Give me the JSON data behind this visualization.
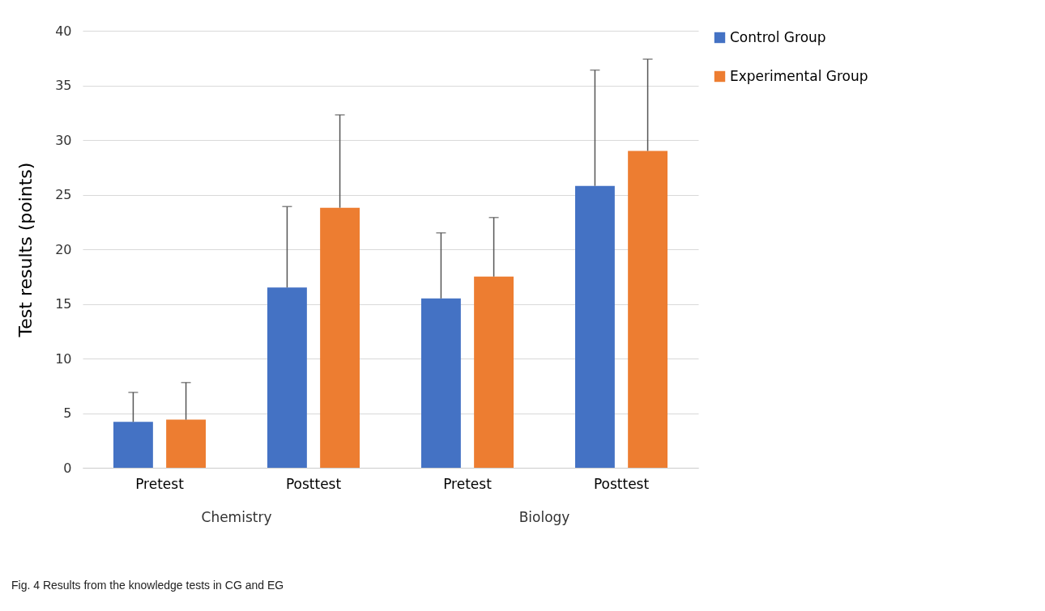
{
  "chart_data": {
    "type": "bar",
    "ylabel": "Test results (points)",
    "categories": [
      "Pretest",
      "Posttest",
      "Pretest",
      "Posttest"
    ],
    "series": [
      {
        "name": "Control Group",
        "color": "#4472c4",
        "values": [
          4.2,
          16.5,
          15.5,
          25.8
        ],
        "errors": [
          [
            4.2,
            6.9
          ],
          [
            16.5,
            23.9
          ],
          [
            15.5,
            21.5
          ],
          [
            25.8,
            36.4
          ]
        ]
      },
      {
        "name": "Experimental Group",
        "color": "#ed7d31",
        "values": [
          4.4,
          23.8,
          17.5,
          29.0
        ],
        "errors": [
          [
            4.4,
            7.8
          ],
          [
            23.8,
            32.3
          ],
          [
            17.5,
            22.9
          ],
          [
            29.0,
            37.4
          ]
        ]
      }
    ],
    "ylim": [
      0,
      40
    ],
    "yticks": [
      0,
      5,
      10,
      15,
      20,
      25,
      30,
      35,
      40
    ],
    "grid": "y",
    "legend": "right",
    "annotations": [
      "Chemistry",
      "Biology",
      "Fig. 4 Results from the knowledge tests in CG and EG"
    ]
  }
}
